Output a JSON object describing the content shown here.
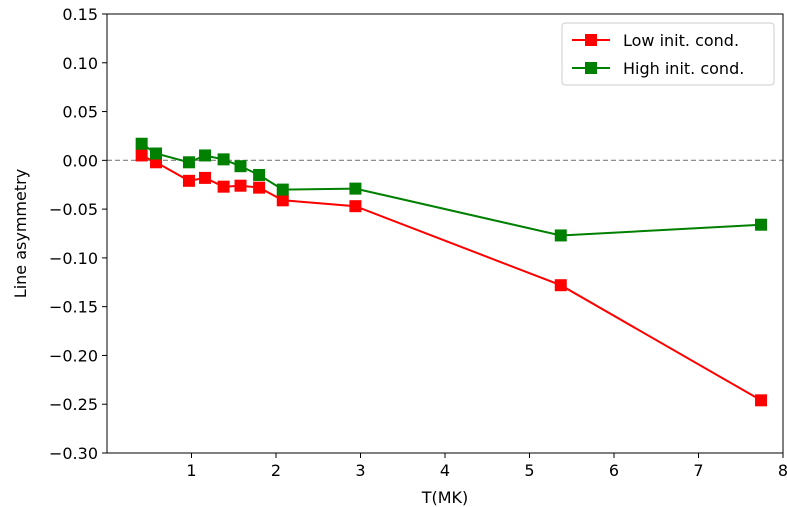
{
  "chart_data": {
    "type": "line",
    "xlabel": "T(MK)",
    "ylabel": "Line asymmetry",
    "xlim": [
      0,
      8
    ],
    "ylim": [
      -0.3,
      0.15
    ],
    "x_ticks": [
      1,
      2,
      3,
      4,
      5,
      6,
      7,
      8
    ],
    "y_ticks": [
      -0.3,
      -0.25,
      -0.2,
      -0.15,
      -0.1,
      -0.05,
      0.0,
      0.05,
      0.1,
      0.15
    ],
    "x_tick_labels": [
      "1",
      "2",
      "3",
      "4",
      "5",
      "6",
      "7",
      "8"
    ],
    "y_tick_labels": [
      "−0.30",
      "−0.25",
      "−0.20",
      "−0.15",
      "−0.10",
      "−0.05",
      "0.00",
      "0.05",
      "0.10",
      "0.15"
    ],
    "reference_line": {
      "y": 0.0,
      "style": "dashed",
      "color": "#808080"
    },
    "legend_position": "top-right",
    "series": [
      {
        "name": "Low init. cond.",
        "color": "#ff0000",
        "marker": "square",
        "x": [
          0.41,
          0.58,
          0.97,
          1.16,
          1.38,
          1.58,
          1.8,
          2.08,
          2.94,
          5.37,
          7.74
        ],
        "y": [
          0.005,
          -0.002,
          -0.021,
          -0.018,
          -0.027,
          -0.026,
          -0.028,
          -0.041,
          -0.047,
          -0.128,
          -0.246
        ]
      },
      {
        "name": "High init. cond.",
        "color": "#008000",
        "marker": "square",
        "x": [
          0.41,
          0.58,
          0.97,
          1.16,
          1.38,
          1.58,
          1.8,
          2.08,
          2.94,
          5.37,
          7.74
        ],
        "y": [
          0.017,
          0.007,
          -0.002,
          0.005,
          0.001,
          -0.006,
          -0.015,
          -0.03,
          -0.029,
          -0.077,
          -0.066
        ]
      }
    ]
  }
}
